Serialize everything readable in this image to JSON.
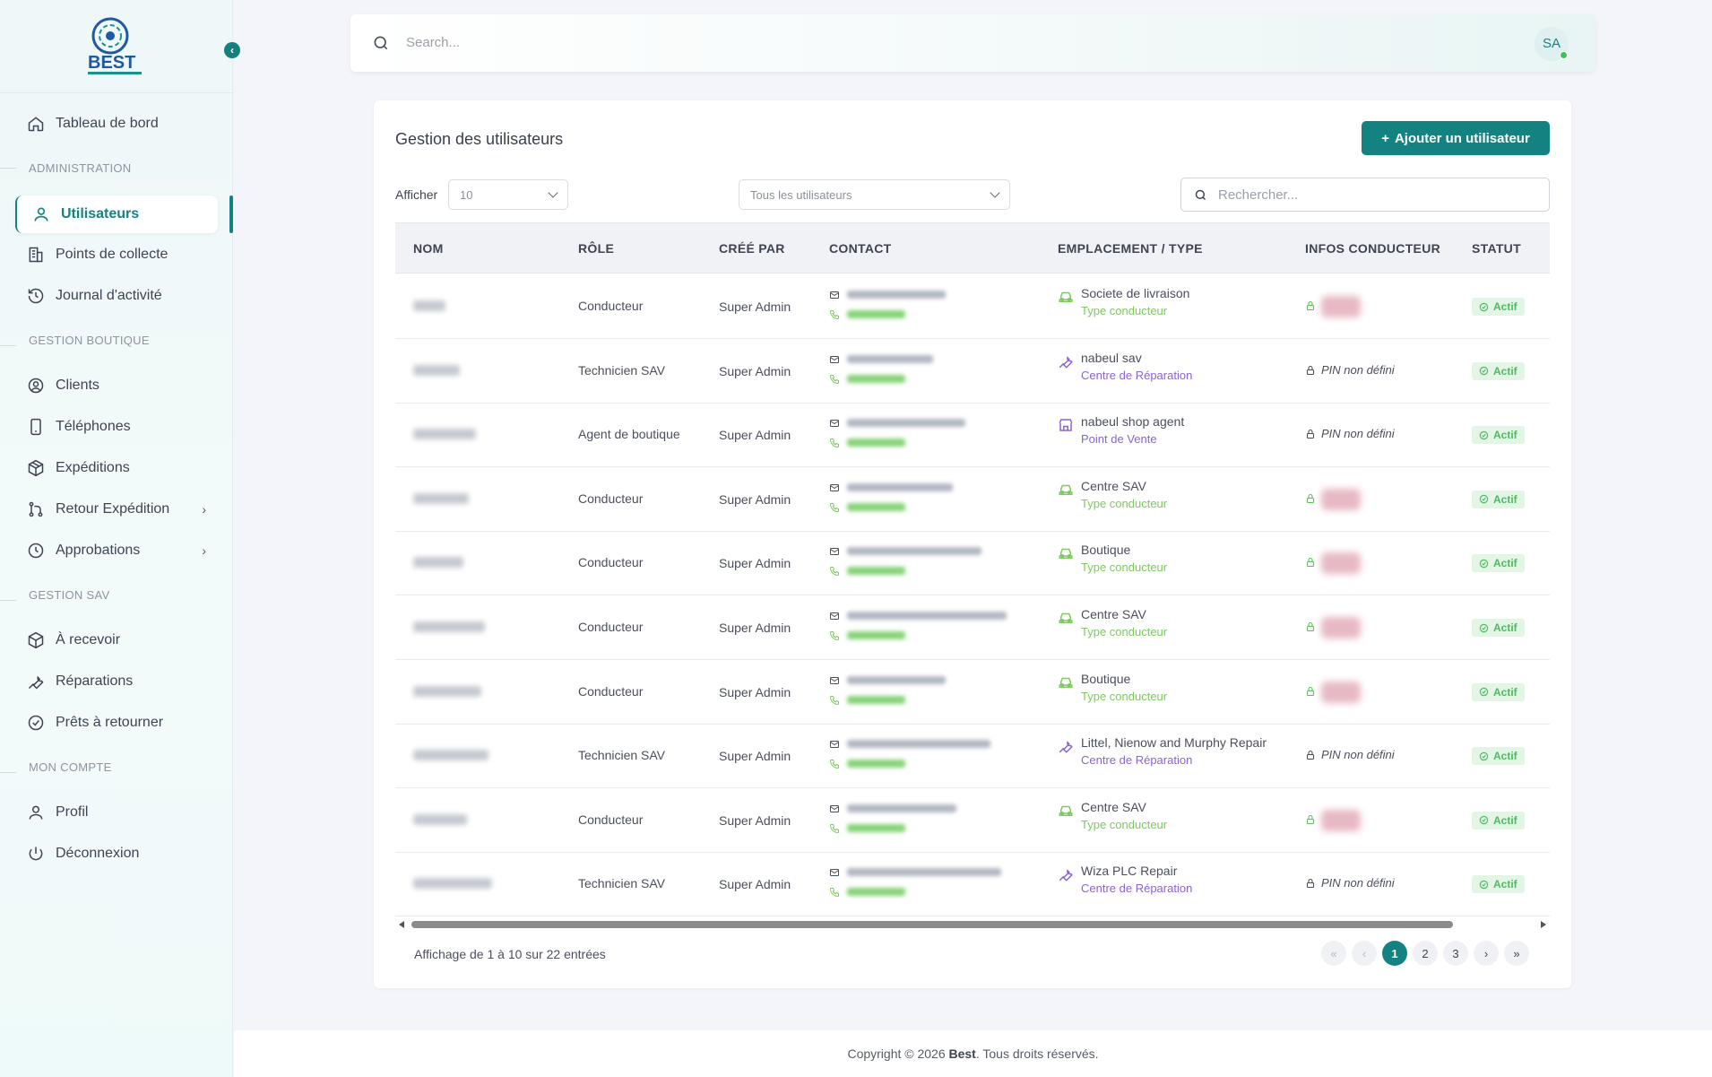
{
  "sidebar": {
    "logo_text": "BEST",
    "collapse_icon": "chevron-left-icon",
    "items": [
      {
        "label": "Tableau de bord",
        "icon": "home-icon"
      },
      {
        "label": "Utilisateurs",
        "icon": "user-icon",
        "active": true
      },
      {
        "label": "Points de collecte",
        "icon": "building-icon"
      },
      {
        "label": "Journal d'activité",
        "icon": "history-icon"
      },
      {
        "label": "Clients",
        "icon": "user-circle-icon"
      },
      {
        "label": "Téléphones",
        "icon": "phone-device-icon"
      },
      {
        "label": "Expéditions",
        "icon": "package-icon"
      },
      {
        "label": "Retour Expédition",
        "icon": "git-branch-icon"
      },
      {
        "label": "Approbations",
        "icon": "clock-icon"
      },
      {
        "label": "À recevoir",
        "icon": "package-icon"
      },
      {
        "label": "Réparations",
        "icon": "wrench-icon"
      },
      {
        "label": "Prêts à retourner",
        "icon": "check-circle-icon"
      },
      {
        "label": "Profil",
        "icon": "user-icon"
      },
      {
        "label": "Déconnexion",
        "icon": "power-icon"
      }
    ],
    "sections": [
      "ADMINISTRATION",
      "GESTION BOUTIQUE",
      "GESTION SAV",
      "MON COMPTE"
    ]
  },
  "topbar": {
    "search_placeholder": "Search...",
    "avatar_initials": "SA"
  },
  "main": {
    "title": "Gestion des utilisateurs",
    "add_button": "Ajouter un utilisateur",
    "show_label": "Afficher",
    "page_size": "10",
    "filter_value": "Tous les utilisateurs",
    "search_placeholder": "Rechercher..."
  },
  "table": {
    "columns": [
      "NOM",
      "RÔLE",
      "CRÉÉ PAR",
      "CONTACT",
      "EMPLACEMENT / TYPE",
      "INFOS CONDUCTEUR",
      "STATUT"
    ],
    "rows": [
      {
        "role": "Conducteur",
        "created_by": "Super Admin",
        "location": "Societe de livraison",
        "loc_type": "Type conducteur",
        "loc_kind": "car",
        "pin": "",
        "status": "Actif"
      },
      {
        "role": "Technicien SAV",
        "created_by": "Super Admin",
        "location": "nabeul sav",
        "loc_type": "Centre de Réparation",
        "loc_kind": "wrench",
        "pin": "PIN non défini",
        "status": "Actif"
      },
      {
        "role": "Agent de boutique",
        "created_by": "Super Admin",
        "location": "nabeul shop agent",
        "loc_type": "Point de Vente",
        "loc_kind": "store",
        "pin": "PIN non défini",
        "status": "Actif"
      },
      {
        "role": "Conducteur",
        "created_by": "Super Admin",
        "location": "Centre SAV",
        "loc_type": "Type conducteur",
        "loc_kind": "car",
        "pin": "",
        "status": "Actif"
      },
      {
        "role": "Conducteur",
        "created_by": "Super Admin",
        "location": "Boutique",
        "loc_type": "Type conducteur",
        "loc_kind": "car",
        "pin": "",
        "status": "Actif"
      },
      {
        "role": "Conducteur",
        "created_by": "Super Admin",
        "location": "Centre SAV",
        "loc_type": "Type conducteur",
        "loc_kind": "car",
        "pin": "",
        "status": "Actif"
      },
      {
        "role": "Conducteur",
        "created_by": "Super Admin",
        "location": "Boutique",
        "loc_type": "Type conducteur",
        "loc_kind": "car",
        "pin": "",
        "status": "Actif"
      },
      {
        "role": "Technicien SAV",
        "created_by": "Super Admin",
        "location": "Littel, Nienow and Murphy Repair",
        "loc_type": "Centre de Réparation",
        "loc_kind": "wrench",
        "pin": "PIN non défini",
        "status": "Actif"
      },
      {
        "role": "Conducteur",
        "created_by": "Super Admin",
        "location": "Centre SAV",
        "loc_type": "Type conducteur",
        "loc_kind": "car",
        "pin": "",
        "status": "Actif"
      },
      {
        "role": "Technicien SAV",
        "created_by": "Super Admin",
        "location": "Wiza PLC Repair",
        "loc_type": "Centre de Réparation",
        "loc_kind": "wrench",
        "pin": "PIN non défini",
        "status": "Actif"
      }
    ]
  },
  "pagination": {
    "info": "Affichage de 1 à 10 sur 22 entrées",
    "first": "«",
    "prev": "‹",
    "pages": [
      "1",
      "2",
      "3"
    ],
    "current": "1",
    "next": "›",
    "last": "»"
  },
  "footer": {
    "prefix": "Copyright © 2026 ",
    "brand": "Best",
    "suffix": ". Tous droits réservés."
  },
  "colors": {
    "accent": "#148281",
    "driver_type": "#7dc95f",
    "repair_type": "#8a63d2",
    "status_green": "#4cbb5e"
  }
}
